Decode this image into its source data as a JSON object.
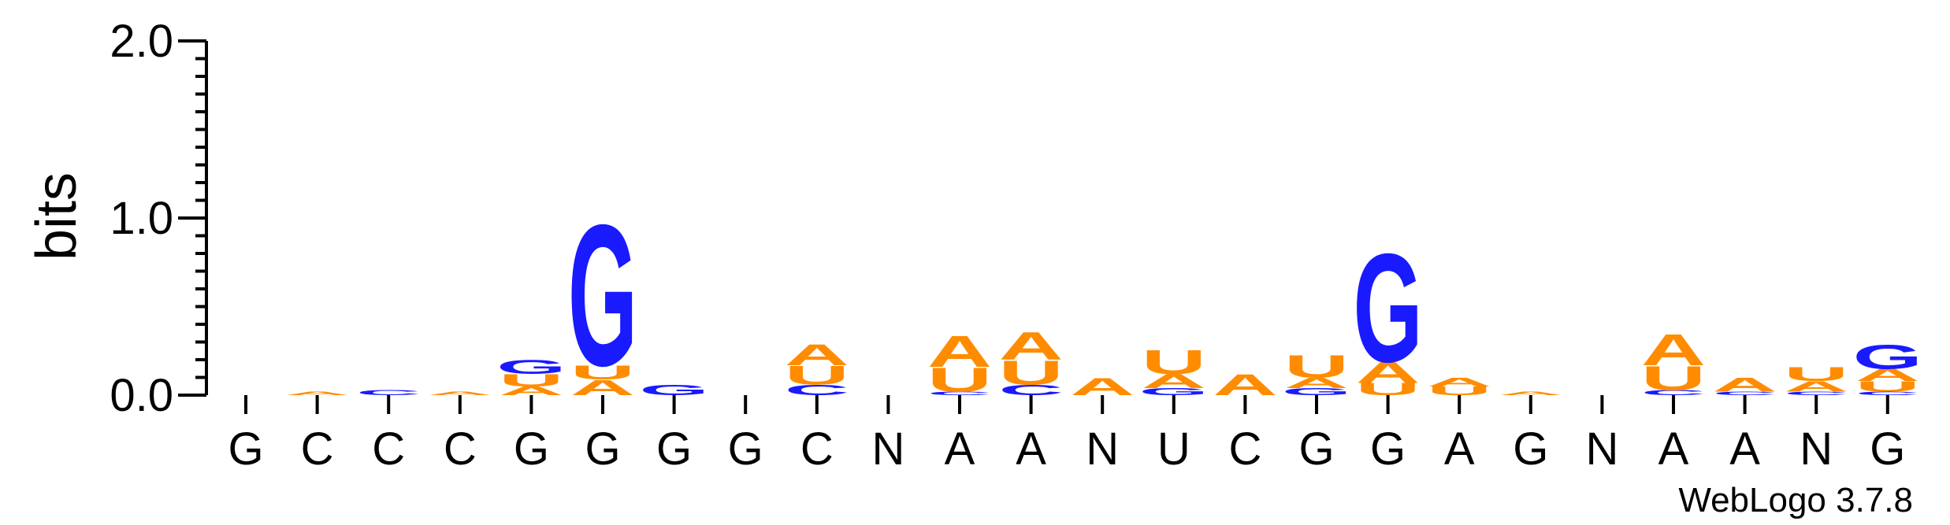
{
  "chart_data": {
    "type": "sequence-logo",
    "ylabel": "bits",
    "ylim": [
      0,
      2.0
    ],
    "yticks": [
      "0.0",
      "1.0",
      "2.0"
    ],
    "positions": [
      "G",
      "C",
      "C",
      "C",
      "G",
      "G",
      "G",
      "G",
      "C",
      "N",
      "A",
      "A",
      "N",
      "U",
      "C",
      "G",
      "G",
      "A",
      "G",
      "N",
      "A",
      "A",
      "N",
      "G"
    ],
    "colors": {
      "G": "#1a1aff",
      "C": "#1a1aff",
      "A": "#ff8c00",
      "U": "#ff8c00"
    },
    "stacks": [
      [],
      [
        {
          "letter": "A",
          "bits": 0.02
        }
      ],
      [
        {
          "letter": "C",
          "bits": 0.03
        }
      ],
      [
        {
          "letter": "A",
          "bits": 0.02
        }
      ],
      [
        {
          "letter": "A",
          "bits": 0.05
        },
        {
          "letter": "U",
          "bits": 0.07
        },
        {
          "letter": "G",
          "bits": 0.08
        }
      ],
      [
        {
          "letter": "A",
          "bits": 0.09
        },
        {
          "letter": "U",
          "bits": 0.08
        },
        {
          "letter": "G",
          "bits": 0.82
        }
      ],
      [
        {
          "letter": "G",
          "bits": 0.06
        }
      ],
      [],
      [
        {
          "letter": "C",
          "bits": 0.06
        },
        {
          "letter": "U",
          "bits": 0.11
        },
        {
          "letter": "A",
          "bits": 0.12
        }
      ],
      [],
      [
        {
          "letter": "C",
          "bits": 0.02
        },
        {
          "letter": "U",
          "bits": 0.14
        },
        {
          "letter": "A",
          "bits": 0.18
        }
      ],
      [
        {
          "letter": "C",
          "bits": 0.06
        },
        {
          "letter": "U",
          "bits": 0.14
        },
        {
          "letter": "A",
          "bits": 0.16
        }
      ],
      [
        {
          "letter": "A",
          "bits": 0.1
        }
      ],
      [
        {
          "letter": "G",
          "bits": 0.04
        },
        {
          "letter": "A",
          "bits": 0.08
        },
        {
          "letter": "U",
          "bits": 0.14
        }
      ],
      [
        {
          "letter": "A",
          "bits": 0.12
        }
      ],
      [
        {
          "letter": "G",
          "bits": 0.04
        },
        {
          "letter": "A",
          "bits": 0.06
        },
        {
          "letter": "U",
          "bits": 0.13
        }
      ],
      [
        {
          "letter": "U",
          "bits": 0.07
        },
        {
          "letter": "A",
          "bits": 0.12
        },
        {
          "letter": "G",
          "bits": 0.63
        }
      ],
      [
        {
          "letter": "U",
          "bits": 0.05
        },
        {
          "letter": "A",
          "bits": 0.05
        }
      ],
      [
        {
          "letter": "A",
          "bits": 0.02
        }
      ],
      [],
      [
        {
          "letter": "C",
          "bits": 0.03
        },
        {
          "letter": "U",
          "bits": 0.14
        },
        {
          "letter": "A",
          "bits": 0.18
        }
      ],
      [
        {
          "letter": "C",
          "bits": 0.02
        },
        {
          "letter": "A",
          "bits": 0.08
        }
      ],
      [
        {
          "letter": "C",
          "bits": 0.02
        },
        {
          "letter": "A",
          "bits": 0.06
        },
        {
          "letter": "U",
          "bits": 0.08
        }
      ],
      [
        {
          "letter": "C",
          "bits": 0.02
        },
        {
          "letter": "U",
          "bits": 0.06
        },
        {
          "letter": "A",
          "bits": 0.07
        },
        {
          "letter": "G",
          "bits": 0.14
        }
      ]
    ]
  },
  "credit": "WebLogo 3.7.8"
}
